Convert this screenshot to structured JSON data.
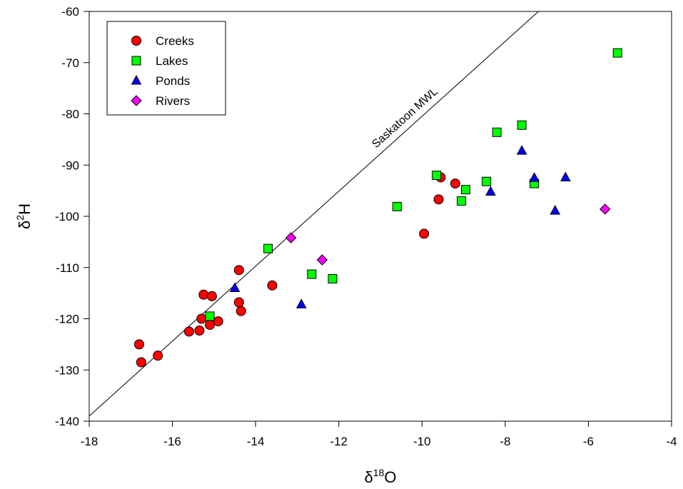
{
  "chart_data": {
    "type": "scatter",
    "xlabel": "δ18O",
    "ylabel": "δ2H",
    "xlim": [
      -18,
      -4
    ],
    "ylim": [
      -140,
      -60
    ],
    "xticks": [
      -18,
      -16,
      -14,
      -12,
      -10,
      -8,
      -6,
      -4
    ],
    "yticks": [
      -140,
      -130,
      -120,
      -110,
      -100,
      -90,
      -80,
      -70,
      -60
    ],
    "xtick_labels": [
      "-18",
      "-16",
      "-14",
      "-12",
      "-10",
      "-8",
      "-6",
      "-4"
    ],
    "ytick_labels": [
      "-140",
      "-130",
      "-120",
      "-110",
      "-100",
      "-90",
      "-80",
      "-70",
      "-60"
    ],
    "grid": false,
    "legend_position": "top-left",
    "reference_line": {
      "label": "Saskatoon MWL",
      "points": [
        [
          -18,
          -139
        ],
        [
          -7.2,
          -60
        ]
      ],
      "color": "#000000"
    },
    "series": [
      {
        "name": "Creeks",
        "marker": "circle",
        "color": "#ff0000",
        "points": [
          [
            -16.8,
            -125
          ],
          [
            -16.75,
            -128.5
          ],
          [
            -16.35,
            -127.2
          ],
          [
            -15.6,
            -122.5
          ],
          [
            -15.35,
            -122.3
          ],
          [
            -15.1,
            -121.2
          ],
          [
            -14.9,
            -120.5
          ],
          [
            -15.3,
            -120
          ],
          [
            -15.25,
            -115.3
          ],
          [
            -15.05,
            -115.6
          ],
          [
            -14.4,
            -110.5
          ],
          [
            -14.4,
            -116.8
          ],
          [
            -14.35,
            -118.5
          ],
          [
            -13.6,
            -113.5
          ],
          [
            -9.95,
            -103.4
          ],
          [
            -9.6,
            -96.7
          ],
          [
            -9.55,
            -92.4
          ],
          [
            -9.2,
            -93.6
          ]
        ]
      },
      {
        "name": "Lakes",
        "marker": "square",
        "color": "#00ff00",
        "points": [
          [
            -15.1,
            -119.5
          ],
          [
            -13.7,
            -106.3
          ],
          [
            -12.65,
            -111.3
          ],
          [
            -12.15,
            -112.2
          ],
          [
            -10.6,
            -98.1
          ],
          [
            -9.65,
            -92
          ],
          [
            -9.05,
            -97
          ],
          [
            -8.95,
            -94.8
          ],
          [
            -8.45,
            -93.2
          ],
          [
            -8.2,
            -83.6
          ],
          [
            -7.6,
            -82.2
          ],
          [
            -7.3,
            -93.6
          ],
          [
            -5.3,
            -68.1
          ]
        ]
      },
      {
        "name": "Ponds",
        "marker": "triangle",
        "color": "#0000ff",
        "points": [
          [
            -14.5,
            -114
          ],
          [
            -12.9,
            -117.2
          ],
          [
            -8.35,
            -95.2
          ],
          [
            -7.6,
            -87.2
          ],
          [
            -7.3,
            -92.5
          ],
          [
            -6.8,
            -98.9
          ],
          [
            -6.55,
            -92.4
          ]
        ]
      },
      {
        "name": "Rivers",
        "marker": "diamond",
        "color": "#ff00ff",
        "points": [
          [
            -13.15,
            -104.2
          ],
          [
            -12.4,
            -108.5
          ],
          [
            -5.6,
            -98.6
          ]
        ]
      }
    ]
  }
}
